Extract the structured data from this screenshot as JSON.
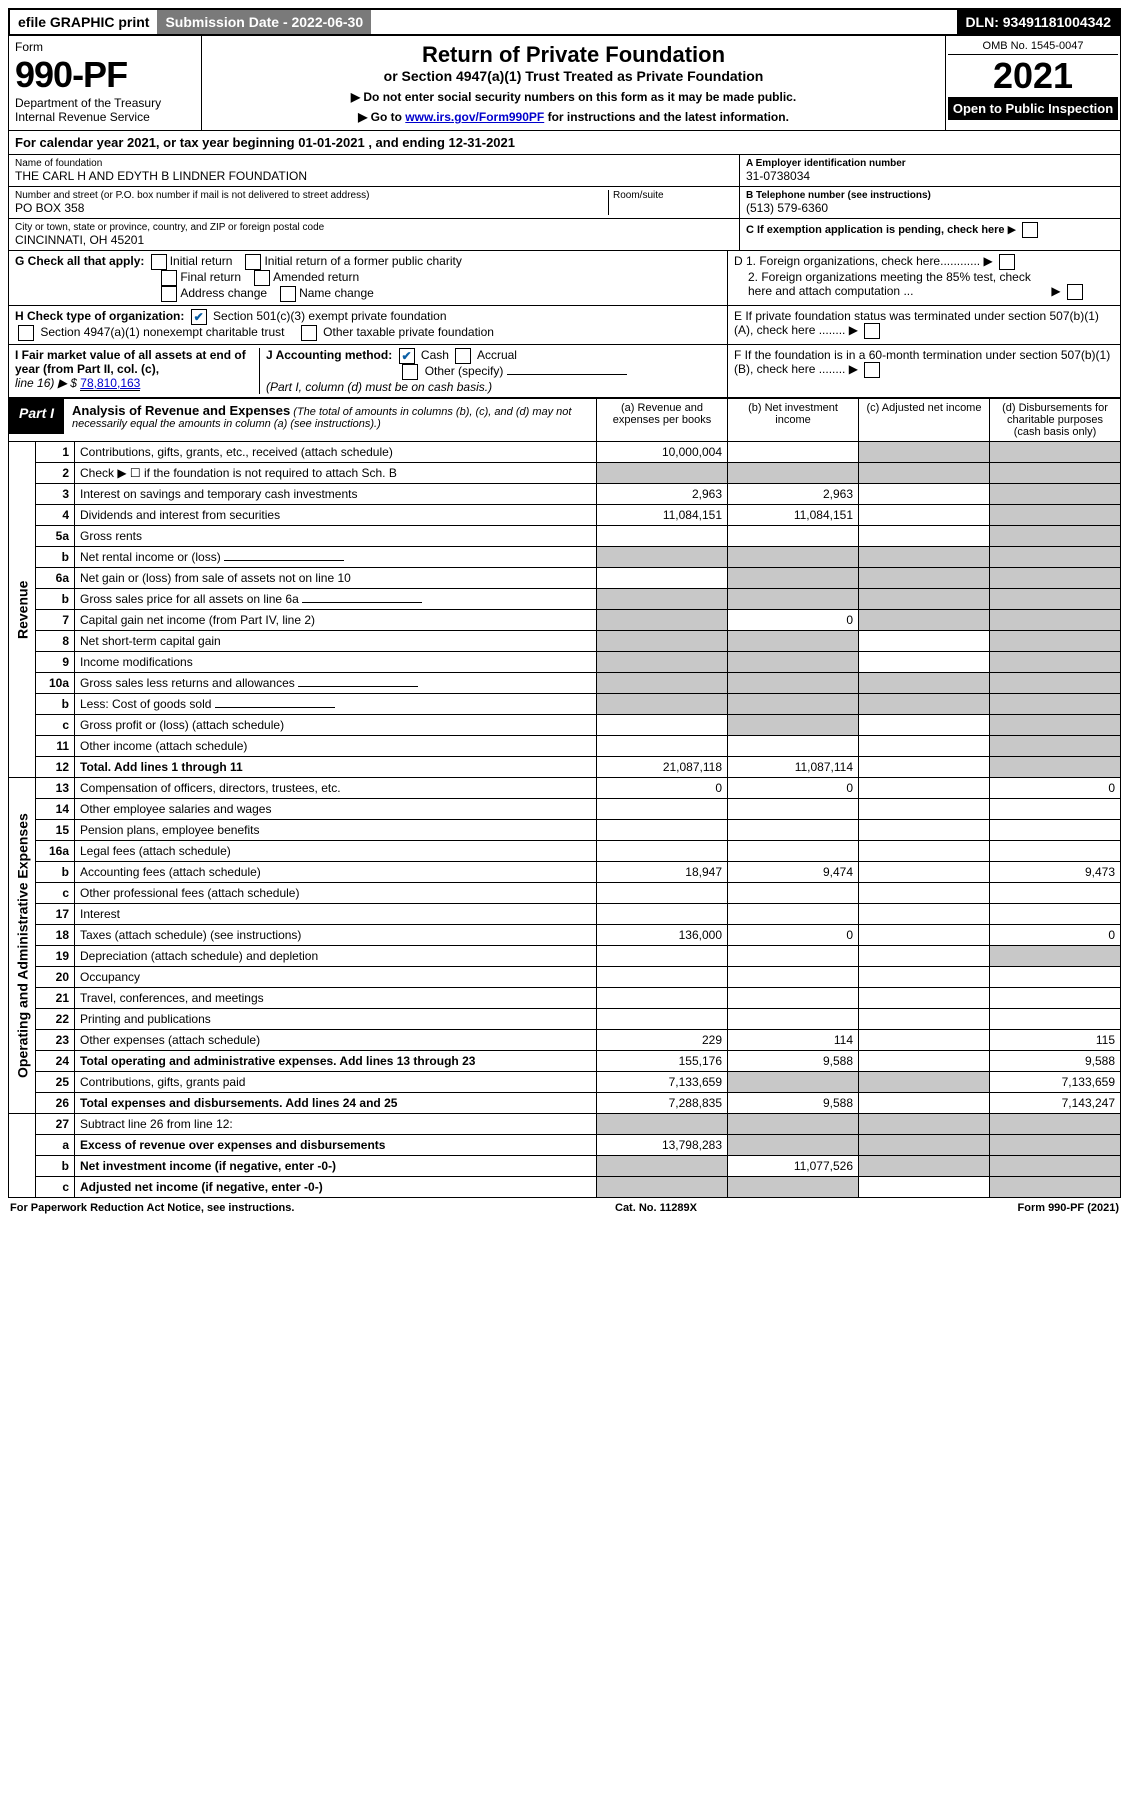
{
  "top": {
    "efile": "efile GRAPHIC print",
    "subdate_label": "Submission Date - 2022-06-30",
    "dln": "DLN: 93491181004342"
  },
  "header": {
    "form_word": "Form",
    "form_num": "990-PF",
    "dept": "Department of the Treasury",
    "irs": "Internal Revenue Service",
    "title": "Return of Private Foundation",
    "subtitle": "or Section 4947(a)(1) Trust Treated as Private Foundation",
    "instr1": "▶ Do not enter social security numbers on this form as it may be made public.",
    "instr2_pre": "▶ Go to ",
    "instr2_link": "www.irs.gov/Form990PF",
    "instr2_post": " for instructions and the latest information.",
    "omb": "OMB No. 1545-0047",
    "year": "2021",
    "open": "Open to Public Inspection"
  },
  "cal_year": "For calendar year 2021, or tax year beginning 01-01-2021            , and ending 12-31-2021",
  "entity": {
    "name_lbl": "Name of foundation",
    "name": "THE CARL H AND EDYTH B LINDNER FOUNDATION",
    "addr_lbl": "Number and street (or P.O. box number if mail is not delivered to street address)",
    "room_lbl": "Room/suite",
    "addr": "PO BOX 358",
    "city_lbl": "City or town, state or province, country, and ZIP or foreign postal code",
    "city": "CINCINNATI, OH  45201",
    "a_lbl": "A Employer identification number",
    "a_val": "31-0738034",
    "b_lbl": "B Telephone number (see instructions)",
    "b_val": "(513) 579-6360",
    "c_lbl": "C If exemption application is pending, check here"
  },
  "g": {
    "label": "G Check all that apply:",
    "opts": [
      "Initial return",
      "Initial return of a former public charity",
      "Final return",
      "Amended return",
      "Address change",
      "Name change"
    ]
  },
  "h": {
    "label": "H Check type of organization:",
    "opt1": "Section 501(c)(3) exempt private foundation",
    "opt2": "Section 4947(a)(1) nonexempt charitable trust",
    "opt3": "Other taxable private foundation"
  },
  "d": {
    "d1": "D 1. Foreign organizations, check here............",
    "d2": "2. Foreign organizations meeting the 85% test, check here and attach computation ..."
  },
  "e_lbl": "E  If private foundation status was terminated under section 507(b)(1)(A), check here ........",
  "f_lbl": "F  If the foundation is in a 60-month termination under section 507(b)(1)(B), check here ........",
  "i": {
    "label": "I Fair market value of all assets at end of year (from Part II, col. (c),",
    "line": "line 16) ▶ $",
    "val": "78,810,163"
  },
  "j": {
    "label": "J Accounting method:",
    "cash": "Cash",
    "accrual": "Accrual",
    "other": "Other (specify)",
    "note": "(Part I, column (d) must be on cash basis.)"
  },
  "part1": {
    "label": "Part I",
    "title": "Analysis of Revenue and Expenses",
    "note": "(The total of amounts in columns (b), (c), and (d) may not necessarily equal the amounts in column (a) (see instructions).)",
    "col_a": "(a)  Revenue and expenses per books",
    "col_b": "(b)  Net investment income",
    "col_c": "(c)  Adjusted net income",
    "col_d": "(d)  Disbursements for charitable purposes (cash basis only)"
  },
  "sides": {
    "rev": "Revenue",
    "exp": "Operating and Administrative Expenses"
  },
  "rows": [
    {
      "n": "1",
      "t": "Contributions, gifts, grants, etc., received (attach schedule)",
      "a": "10,000,004",
      "b": "",
      "c": "g",
      "d": "g"
    },
    {
      "n": "2",
      "t": "Check ▶ ☐ if the foundation is not required to attach Sch. B",
      "a": "g",
      "b": "g",
      "c": "g",
      "d": "g",
      "raw": true,
      "txt": "Check ▶"
    },
    {
      "n": "3",
      "t": "Interest on savings and temporary cash investments",
      "a": "2,963",
      "b": "2,963",
      "c": "",
      "d": "g"
    },
    {
      "n": "4",
      "t": "Dividends and interest from securities",
      "a": "11,084,151",
      "b": "11,084,151",
      "c": "",
      "d": "g"
    },
    {
      "n": "5a",
      "t": "Gross rents",
      "a": "",
      "b": "",
      "c": "",
      "d": "g"
    },
    {
      "n": "b",
      "t": "Net rental income or (loss)",
      "a": "g",
      "b": "g",
      "c": "g",
      "d": "g",
      "under": true
    },
    {
      "n": "6a",
      "t": "Net gain or (loss) from sale of assets not on line 10",
      "a": "",
      "b": "g",
      "c": "g",
      "d": "g"
    },
    {
      "n": "b",
      "t": "Gross sales price for all assets on line 6a",
      "a": "g",
      "b": "g",
      "c": "g",
      "d": "g",
      "under": true
    },
    {
      "n": "7",
      "t": "Capital gain net income (from Part IV, line 2)",
      "a": "g",
      "b": "0",
      "c": "g",
      "d": "g"
    },
    {
      "n": "8",
      "t": "Net short-term capital gain",
      "a": "g",
      "b": "g",
      "c": "",
      "d": "g"
    },
    {
      "n": "9",
      "t": "Income modifications",
      "a": "g",
      "b": "g",
      "c": "",
      "d": "g"
    },
    {
      "n": "10a",
      "t": "Gross sales less returns and allowances",
      "a": "g",
      "b": "g",
      "c": "g",
      "d": "g",
      "under": true
    },
    {
      "n": "b",
      "t": "Less: Cost of goods sold",
      "a": "g",
      "b": "g",
      "c": "g",
      "d": "g",
      "under": true
    },
    {
      "n": "c",
      "t": "Gross profit or (loss) (attach schedule)",
      "a": "",
      "b": "g",
      "c": "",
      "d": "g"
    },
    {
      "n": "11",
      "t": "Other income (attach schedule)",
      "a": "",
      "b": "",
      "c": "",
      "d": "g"
    },
    {
      "n": "12",
      "t": "Total. Add lines 1 through 11",
      "a": "21,087,118",
      "b": "11,087,114",
      "c": "",
      "d": "g",
      "bold": true
    }
  ],
  "rows_exp": [
    {
      "n": "13",
      "t": "Compensation of officers, directors, trustees, etc.",
      "a": "0",
      "b": "0",
      "c": "",
      "d": "0"
    },
    {
      "n": "14",
      "t": "Other employee salaries and wages",
      "a": "",
      "b": "",
      "c": "",
      "d": ""
    },
    {
      "n": "15",
      "t": "Pension plans, employee benefits",
      "a": "",
      "b": "",
      "c": "",
      "d": ""
    },
    {
      "n": "16a",
      "t": "Legal fees (attach schedule)",
      "a": "",
      "b": "",
      "c": "",
      "d": ""
    },
    {
      "n": "b",
      "t": "Accounting fees (attach schedule)",
      "a": "18,947",
      "b": "9,474",
      "c": "",
      "d": "9,473"
    },
    {
      "n": "c",
      "t": "Other professional fees (attach schedule)",
      "a": "",
      "b": "",
      "c": "",
      "d": ""
    },
    {
      "n": "17",
      "t": "Interest",
      "a": "",
      "b": "",
      "c": "",
      "d": ""
    },
    {
      "n": "18",
      "t": "Taxes (attach schedule) (see instructions)",
      "a": "136,000",
      "b": "0",
      "c": "",
      "d": "0"
    },
    {
      "n": "19",
      "t": "Depreciation (attach schedule) and depletion",
      "a": "",
      "b": "",
      "c": "",
      "d": "g"
    },
    {
      "n": "20",
      "t": "Occupancy",
      "a": "",
      "b": "",
      "c": "",
      "d": ""
    },
    {
      "n": "21",
      "t": "Travel, conferences, and meetings",
      "a": "",
      "b": "",
      "c": "",
      "d": ""
    },
    {
      "n": "22",
      "t": "Printing and publications",
      "a": "",
      "b": "",
      "c": "",
      "d": ""
    },
    {
      "n": "23",
      "t": "Other expenses (attach schedule)",
      "a": "229",
      "b": "114",
      "c": "",
      "d": "115"
    },
    {
      "n": "24",
      "t": "Total operating and administrative expenses. Add lines 13 through 23",
      "a": "155,176",
      "b": "9,588",
      "c": "",
      "d": "9,588",
      "bold": true
    },
    {
      "n": "25",
      "t": "Contributions, gifts, grants paid",
      "a": "7,133,659",
      "b": "g",
      "c": "g",
      "d": "7,133,659"
    },
    {
      "n": "26",
      "t": "Total expenses and disbursements. Add lines 24 and 25",
      "a": "7,288,835",
      "b": "9,588",
      "c": "",
      "d": "7,143,247",
      "bold": true
    }
  ],
  "rows_bot": [
    {
      "n": "27",
      "t": "Subtract line 26 from line 12:",
      "a": "g",
      "b": "g",
      "c": "g",
      "d": "g"
    },
    {
      "n": "a",
      "t": "Excess of revenue over expenses and disbursements",
      "a": "13,798,283",
      "b": "g",
      "c": "g",
      "d": "g",
      "bold": true
    },
    {
      "n": "b",
      "t": "Net investment income (if negative, enter -0-)",
      "a": "g",
      "b": "11,077,526",
      "c": "g",
      "d": "g",
      "bold": true
    },
    {
      "n": "c",
      "t": "Adjusted net income (if negative, enter -0-)",
      "a": "g",
      "b": "g",
      "c": "",
      "d": "g",
      "bold": true
    }
  ],
  "footer": {
    "left": "For Paperwork Reduction Act Notice, see instructions.",
    "mid": "Cat. No. 11289X",
    "right": "Form 990-PF (2021)"
  },
  "check_true": "✔"
}
